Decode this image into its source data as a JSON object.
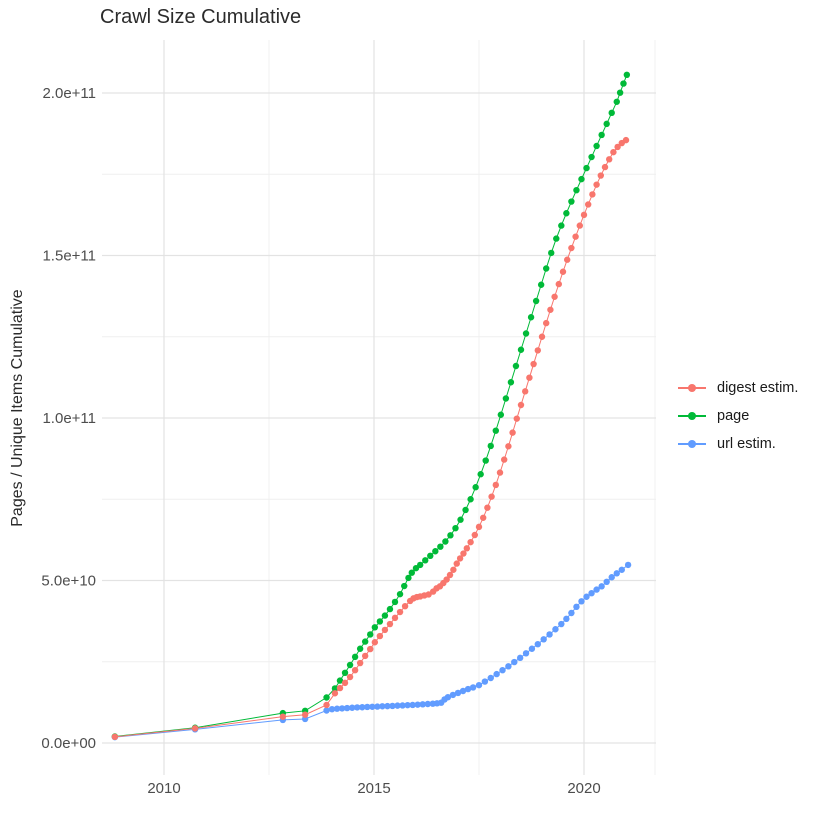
{
  "title": "Crawl Size Cumulative",
  "chart_data": {
    "type": "scatter",
    "title": "Crawl Size Cumulative",
    "xlabel": "",
    "ylabel": "Pages / Unique Items Cumulative",
    "values_unit": "pages (billions, 1e9)",
    "xlim": [
      2008.2,
      2021.7
    ],
    "ylim_e9": [
      -10,
      216
    ],
    "grid": "on",
    "legend_position": "right",
    "x_ticks": [
      {
        "value": 2010,
        "label": "2010"
      },
      {
        "value": 2015,
        "label": "2015"
      },
      {
        "value": 2020,
        "label": "2020"
      }
    ],
    "x_minor": [
      2012.5,
      2017.5
    ],
    "y_ticks": [
      {
        "value": 0,
        "label": "0.0e+00"
      },
      {
        "value": 50,
        "label": "5.0e+10"
      },
      {
        "value": 100,
        "label": "1.0e+11"
      },
      {
        "value": 150,
        "label": "1.5e+11"
      },
      {
        "value": 200,
        "label": "2.0e+11"
      }
    ],
    "y_minor": [
      25,
      75,
      125,
      175
    ],
    "legend": [
      {
        "name": "digest estim.",
        "color": "#F8766D"
      },
      {
        "name": "page",
        "color": "#00BA38"
      },
      {
        "name": "url estim.",
        "color": "#619CFF"
      }
    ],
    "draw_order": [
      "url estim.",
      "page",
      "digest estim."
    ],
    "series": [
      {
        "name": "digest estim.",
        "color": "#F8766D",
        "points": [
          [
            2008.83,
            1.9
          ],
          [
            2010.74,
            4.5
          ],
          [
            2012.83,
            8.1
          ],
          [
            2013.36,
            8.7
          ],
          [
            2013.87,
            11.7
          ],
          [
            2014.07,
            15.3
          ],
          [
            2014.19,
            16.9
          ],
          [
            2014.31,
            18.5
          ],
          [
            2014.43,
            20.3
          ],
          [
            2014.55,
            22.4
          ],
          [
            2014.67,
            24.6
          ],
          [
            2014.79,
            26.8
          ],
          [
            2014.91,
            28.9
          ],
          [
            2015.02,
            31.0
          ],
          [
            2015.14,
            32.9
          ],
          [
            2015.26,
            34.8
          ],
          [
            2015.38,
            36.6
          ],
          [
            2015.5,
            38.5
          ],
          [
            2015.62,
            40.3
          ],
          [
            2015.74,
            42.1
          ],
          [
            2015.86,
            43.7
          ],
          [
            2015.94,
            44.5
          ],
          [
            2016.02,
            44.9
          ],
          [
            2016.1,
            45.1
          ],
          [
            2016.2,
            45.4
          ],
          [
            2016.3,
            45.7
          ],
          [
            2016.41,
            46.6
          ],
          [
            2016.49,
            47.6
          ],
          [
            2016.57,
            48.2
          ],
          [
            2016.65,
            49.2
          ],
          [
            2016.73,
            50.3
          ],
          [
            2016.81,
            51.7
          ],
          [
            2016.89,
            53.3
          ],
          [
            2016.97,
            55.2
          ],
          [
            2017.05,
            56.8
          ],
          [
            2017.13,
            58.3
          ],
          [
            2017.21,
            59.9
          ],
          [
            2017.3,
            61.8
          ],
          [
            2017.4,
            64.0
          ],
          [
            2017.5,
            66.5
          ],
          [
            2017.6,
            69.3
          ],
          [
            2017.7,
            72.4
          ],
          [
            2017.8,
            75.8
          ],
          [
            2017.9,
            79.4
          ],
          [
            2018.0,
            83.2
          ],
          [
            2018.1,
            87.2
          ],
          [
            2018.2,
            91.3
          ],
          [
            2018.3,
            95.5
          ],
          [
            2018.4,
            99.8
          ],
          [
            2018.5,
            104.0
          ],
          [
            2018.6,
            108.2
          ],
          [
            2018.7,
            112.4
          ],
          [
            2018.8,
            116.6
          ],
          [
            2018.9,
            120.8
          ],
          [
            2019.0,
            125.0
          ],
          [
            2019.1,
            129.2
          ],
          [
            2019.2,
            133.3
          ],
          [
            2019.3,
            137.3
          ],
          [
            2019.4,
            141.2
          ],
          [
            2019.5,
            145.0
          ],
          [
            2019.6,
            148.7
          ],
          [
            2019.7,
            152.3
          ],
          [
            2019.8,
            155.8
          ],
          [
            2019.9,
            159.2
          ],
          [
            2020.0,
            162.5
          ],
          [
            2020.1,
            165.7
          ],
          [
            2020.2,
            168.8
          ],
          [
            2020.3,
            171.8
          ],
          [
            2020.4,
            174.6
          ],
          [
            2020.5,
            177.2
          ],
          [
            2020.6,
            179.6
          ],
          [
            2020.7,
            181.8
          ],
          [
            2020.8,
            183.4
          ],
          [
            2020.9,
            184.6
          ],
          [
            2021.0,
            185.5
          ]
        ]
      },
      {
        "name": "page",
        "color": "#00BA38",
        "points": [
          [
            2008.83,
            2.0
          ],
          [
            2010.74,
            4.7
          ],
          [
            2012.83,
            9.2
          ],
          [
            2013.36,
            9.9
          ],
          [
            2013.87,
            14.0
          ],
          [
            2014.07,
            16.8
          ],
          [
            2014.19,
            19.2
          ],
          [
            2014.31,
            21.6
          ],
          [
            2014.43,
            24.0
          ],
          [
            2014.55,
            26.5
          ],
          [
            2014.67,
            29.0
          ],
          [
            2014.79,
            31.2
          ],
          [
            2014.91,
            33.4
          ],
          [
            2015.02,
            35.6
          ],
          [
            2015.14,
            37.4
          ],
          [
            2015.26,
            39.2
          ],
          [
            2015.38,
            41.2
          ],
          [
            2015.5,
            43.4
          ],
          [
            2015.62,
            45.8
          ],
          [
            2015.72,
            48.3
          ],
          [
            2015.82,
            50.8
          ],
          [
            2015.9,
            52.4
          ],
          [
            2016.0,
            53.8
          ],
          [
            2016.1,
            54.8
          ],
          [
            2016.22,
            56.2
          ],
          [
            2016.34,
            57.6
          ],
          [
            2016.46,
            59.0
          ],
          [
            2016.58,
            60.4
          ],
          [
            2016.7,
            62.0
          ],
          [
            2016.82,
            63.9
          ],
          [
            2016.94,
            66.1
          ],
          [
            2017.06,
            68.7
          ],
          [
            2017.18,
            71.7
          ],
          [
            2017.3,
            75.0
          ],
          [
            2017.42,
            78.7
          ],
          [
            2017.54,
            82.7
          ],
          [
            2017.66,
            86.9
          ],
          [
            2017.78,
            91.4
          ],
          [
            2017.9,
            96.1
          ],
          [
            2018.02,
            101.0
          ],
          [
            2018.14,
            106.0
          ],
          [
            2018.26,
            111.0
          ],
          [
            2018.38,
            116.0
          ],
          [
            2018.5,
            121.0
          ],
          [
            2018.62,
            126.0
          ],
          [
            2018.74,
            131.0
          ],
          [
            2018.86,
            136.0
          ],
          [
            2018.98,
            141.0
          ],
          [
            2019.1,
            146.0
          ],
          [
            2019.22,
            150.8
          ],
          [
            2019.34,
            155.2
          ],
          [
            2019.46,
            159.2
          ],
          [
            2019.58,
            163.0
          ],
          [
            2019.7,
            166.6
          ],
          [
            2019.82,
            170.1
          ],
          [
            2019.94,
            173.5
          ],
          [
            2020.06,
            176.9
          ],
          [
            2020.18,
            180.3
          ],
          [
            2020.3,
            183.7
          ],
          [
            2020.42,
            187.1
          ],
          [
            2020.54,
            190.5
          ],
          [
            2020.66,
            193.9
          ],
          [
            2020.78,
            197.3
          ],
          [
            2020.86,
            200.1
          ],
          [
            2020.94,
            202.9
          ],
          [
            2021.02,
            205.6
          ]
        ]
      },
      {
        "name": "url estim.",
        "color": "#619CFF",
        "points": [
          [
            2008.83,
            1.8
          ],
          [
            2010.74,
            4.2
          ],
          [
            2012.83,
            7.1
          ],
          [
            2013.36,
            7.4
          ],
          [
            2013.87,
            10.0
          ],
          [
            2014.0,
            10.4
          ],
          [
            2014.12,
            10.55
          ],
          [
            2014.24,
            10.65
          ],
          [
            2014.36,
            10.75
          ],
          [
            2014.48,
            10.85
          ],
          [
            2014.6,
            10.95
          ],
          [
            2014.72,
            11.0
          ],
          [
            2014.84,
            11.1
          ],
          [
            2014.96,
            11.15
          ],
          [
            2015.08,
            11.2
          ],
          [
            2015.2,
            11.3
          ],
          [
            2015.32,
            11.35
          ],
          [
            2015.44,
            11.4
          ],
          [
            2015.56,
            11.5
          ],
          [
            2015.68,
            11.55
          ],
          [
            2015.8,
            11.65
          ],
          [
            2015.92,
            11.7
          ],
          [
            2016.04,
            11.8
          ],
          [
            2016.16,
            11.9
          ],
          [
            2016.28,
            12.0
          ],
          [
            2016.4,
            12.1
          ],
          [
            2016.5,
            12.2
          ],
          [
            2016.6,
            12.4
          ],
          [
            2016.68,
            13.4
          ],
          [
            2016.76,
            14.1
          ],
          [
            2016.88,
            14.8
          ],
          [
            2017.0,
            15.4
          ],
          [
            2017.12,
            16.0
          ],
          [
            2017.24,
            16.6
          ],
          [
            2017.36,
            17.1
          ],
          [
            2017.5,
            17.8
          ],
          [
            2017.64,
            18.9
          ],
          [
            2017.78,
            20.0
          ],
          [
            2017.92,
            21.2
          ],
          [
            2018.06,
            22.4
          ],
          [
            2018.2,
            23.6
          ],
          [
            2018.34,
            24.9
          ],
          [
            2018.48,
            26.2
          ],
          [
            2018.62,
            27.6
          ],
          [
            2018.76,
            29.0
          ],
          [
            2018.9,
            30.4
          ],
          [
            2019.04,
            31.9
          ],
          [
            2019.18,
            33.4
          ],
          [
            2019.32,
            35.0
          ],
          [
            2019.46,
            36.6
          ],
          [
            2019.58,
            38.2
          ],
          [
            2019.7,
            40.0
          ],
          [
            2019.82,
            41.9
          ],
          [
            2019.94,
            43.6
          ],
          [
            2020.06,
            45.0
          ],
          [
            2020.18,
            46.1
          ],
          [
            2020.3,
            47.2
          ],
          [
            2020.42,
            48.2
          ],
          [
            2020.54,
            49.6
          ],
          [
            2020.66,
            51.0
          ],
          [
            2020.78,
            52.2
          ],
          [
            2020.9,
            53.3
          ],
          [
            2021.05,
            54.8
          ]
        ]
      }
    ]
  },
  "colors": {
    "background": "#ffffff",
    "grid_major": "#e3e3e3",
    "grid_minor": "#efefef",
    "axis_text": "#4d4d4d",
    "title_text": "#2b2b2b",
    "legend_text": "#1a1a1a"
  }
}
